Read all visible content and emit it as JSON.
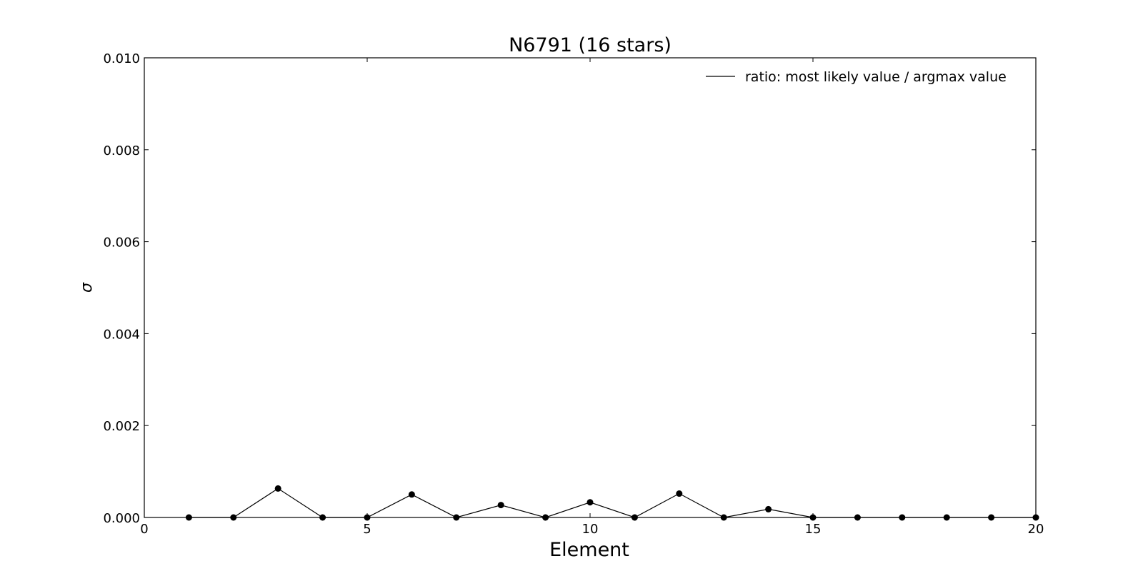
{
  "chart_data": {
    "type": "line",
    "title": "N6791 (16 stars)",
    "xlabel": "Element",
    "ylabel": "σ",
    "xlim": [
      0,
      20
    ],
    "ylim": [
      0,
      0.01
    ],
    "xticks": [
      0,
      5,
      10,
      15,
      20
    ],
    "yticks": [
      "0.000",
      "0.002",
      "0.004",
      "0.006",
      "0.008",
      "0.010"
    ],
    "grid": false,
    "legend_position": "top-right",
    "series": [
      {
        "name": "ratio: most likely value / argmax value",
        "color": "#000000",
        "marker": "circle",
        "x": [
          1,
          2,
          3,
          4,
          5,
          6,
          7,
          8,
          9,
          10,
          11,
          12,
          13,
          14,
          15,
          16,
          17,
          18,
          19,
          20
        ],
        "y": [
          0,
          0,
          0.00063,
          0,
          0,
          0.0005,
          0,
          0.00027,
          0,
          0.00033,
          0,
          0.00052,
          0,
          0.00018,
          0,
          0,
          0,
          0,
          0,
          0
        ]
      }
    ]
  }
}
